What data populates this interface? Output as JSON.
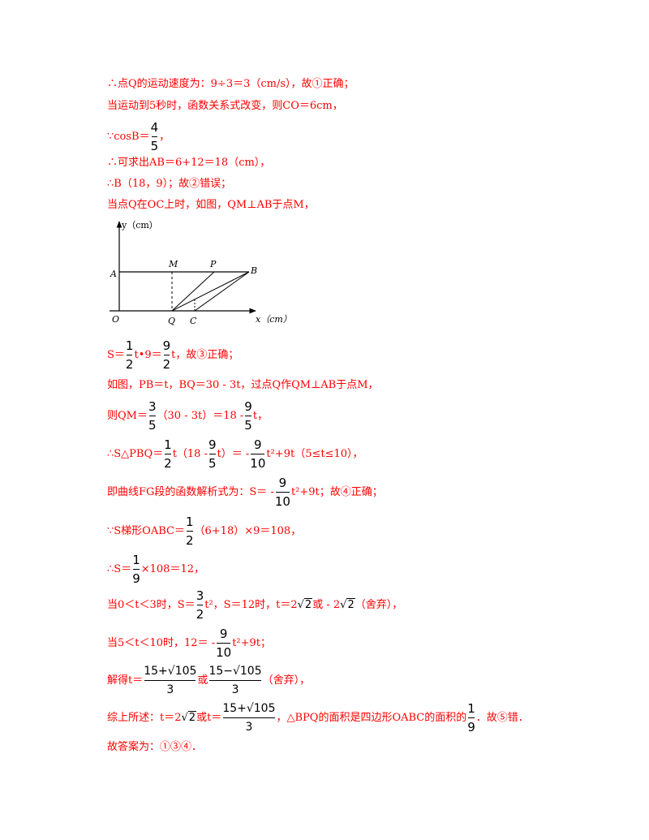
{
  "lines": {
    "l1": "∴点Q的运动速度为：9÷3＝3（cm/s），故①正确；",
    "l2": "当运动到5秒时，函数关系式改变，则CO＝6cm，",
    "l3": "∵cosB＝",
    "l3_num": "4",
    "l3_den": "5",
    "l4": "∴可求出AB＝6+12＝18（cm），",
    "l5": "∴B（18，9）；故②错误；",
    "l6": "当点Q在OC上时，如图，QM⊥AB于点M，",
    "l7_a": "S＝",
    "l7_b": "t•9＝",
    "l7_c": "t，故③正确；",
    "l8": "如图，PB＝t，BQ＝30 - 3t，过点Q作QM⊥AB于点M，",
    "l9_a": "则QM＝",
    "l9_b": "（30 - 3t）＝18 -",
    "l9_c": "t，",
    "l10_a": "∴S△PBQ＝",
    "l10_b": "t（18 -",
    "l10_c": "t）＝ -",
    "l10_d": "t²+9t（5≤t≤10），",
    "l11_a": "即曲线FG段的函数解析式为：S＝ -",
    "l11_b": "t²+9t；故④正确；",
    "l12_a": "∵S梯形OABC＝",
    "l12_b": "（6+18）×9＝108，",
    "l13_a": "∴S＝",
    "l13_b": "×108＝12，",
    "l14_a": "当0＜t＜3时，S＝",
    "l14_b": "t²，S＝12时，t＝2",
    "l14_c": "或 - 2",
    "l14_d": "（舍弃），",
    "l15_a": "当5＜t＜10时，12＝ -",
    "l15_b": "t²+9t；",
    "l16_a": "解得t＝",
    "l16_b": "或",
    "l16_c": "（舍弃），",
    "l17_a": "综上所述：t＝2",
    "l17_b": "或t＝",
    "l17_c": "，△BPQ的面积是四边形OABC的面积的",
    "l17_d": "．故⑤错．",
    "l18": "故答案为：①③④．"
  },
  "fracs": {
    "half": {
      "num": "1",
      "den": "2"
    },
    "nine_half": {
      "num": "9",
      "den": "2"
    },
    "three_fifth": {
      "num": "3",
      "den": "5"
    },
    "nine_fifth": {
      "num": "9",
      "den": "5"
    },
    "nine_tenth": {
      "num": "9",
      "den": "10"
    },
    "one_ninth": {
      "num": "1",
      "den": "9"
    },
    "three_half": {
      "num": "3",
      "den": "2"
    },
    "root_a": {
      "num": "15+√105",
      "den": "3"
    },
    "root_b": {
      "num": "15−√105",
      "den": "3"
    },
    "sqrt2": "2"
  },
  "figure": {
    "y_axis": "y（cm）",
    "x_axis": "x（cm）",
    "labels": {
      "A": "A",
      "M": "M",
      "P": "P",
      "B": "B",
      "O": "O",
      "Q": "Q",
      "C": "C"
    }
  }
}
